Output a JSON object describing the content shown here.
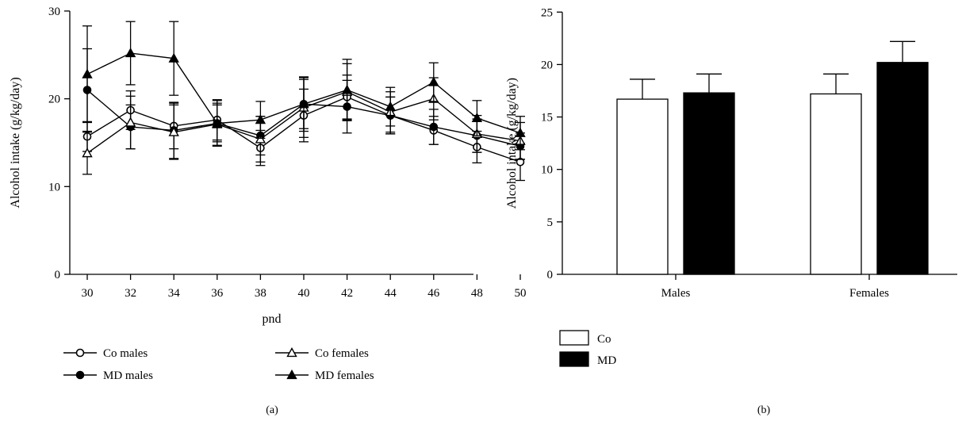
{
  "figure": {
    "panel_a_label": "(a)",
    "panel_b_label": "(b)"
  },
  "chart_data": [
    {
      "type": "line",
      "panel": "(a)",
      "xlabel": "pnd",
      "ylabel": "Alcohol intake (g/kg/day)",
      "ylim": [
        0,
        30
      ],
      "yticks": [
        0,
        10,
        20,
        30
      ],
      "x": [
        30,
        32,
        34,
        36,
        38,
        40,
        42,
        44,
        46,
        48,
        50
      ],
      "grid": false,
      "legend_placement": "bottom",
      "series": [
        {
          "name": "Co males",
          "marker": "open-circle",
          "values": [
            15.7,
            18.7,
            16.9,
            17.6,
            14.4,
            18.1,
            20.2,
            18.1,
            16.4,
            14.5,
            12.8
          ],
          "errors": [
            1.7,
            2.2,
            2.6,
            2.3,
            2.0,
            3.0,
            2.5,
            2.1,
            1.6,
            1.8,
            2.1
          ]
        },
        {
          "name": "MD males",
          "marker": "filled-circle",
          "values": [
            21.0,
            16.8,
            16.4,
            17.2,
            15.8,
            19.4,
            19.1,
            18.1,
            16.8,
            15.8,
            14.6
          ],
          "errors": [
            4.7,
            2.5,
            3.2,
            2.1,
            2.2,
            3.1,
            3.0,
            2.1,
            2.0,
            1.9,
            1.5
          ]
        },
        {
          "name": "Co females",
          "marker": "open-triangle",
          "values": [
            13.8,
            17.3,
            16.2,
            17.1,
            15.4,
            19.0,
            20.8,
            18.5,
            20.0,
            16.0,
            15.2
          ],
          "errors": [
            2.4,
            3.0,
            3.1,
            2.4,
            2.6,
            3.4,
            3.2,
            2.3,
            2.4,
            2.1,
            2.1
          ]
        },
        {
          "name": "MD females",
          "marker": "filled-triangle",
          "values": [
            22.8,
            25.2,
            24.6,
            17.2,
            17.6,
            19.4,
            21.0,
            19.1,
            21.9,
            17.8,
            16.1
          ],
          "errors": [
            5.5,
            3.6,
            4.2,
            2.6,
            2.1,
            2.8,
            3.5,
            2.2,
            2.2,
            2.0,
            1.9
          ]
        }
      ]
    },
    {
      "type": "bar",
      "panel": "(b)",
      "xlabel": "",
      "ylabel": "Alcohol intake (g/kg/day)",
      "ylim": [
        0,
        25
      ],
      "yticks": [
        0,
        5,
        10,
        15,
        20,
        25
      ],
      "categories": [
        "Males",
        "Females"
      ],
      "grid": false,
      "legend_placement": "bottom-left",
      "series": [
        {
          "name": "Co",
          "fill": "#ffffff",
          "values": [
            16.7,
            17.2
          ],
          "errors": [
            1.9,
            1.9
          ]
        },
        {
          "name": "MD",
          "fill": "#000000",
          "values": [
            17.3,
            20.2
          ],
          "errors": [
            1.8,
            2.0
          ]
        }
      ]
    }
  ]
}
